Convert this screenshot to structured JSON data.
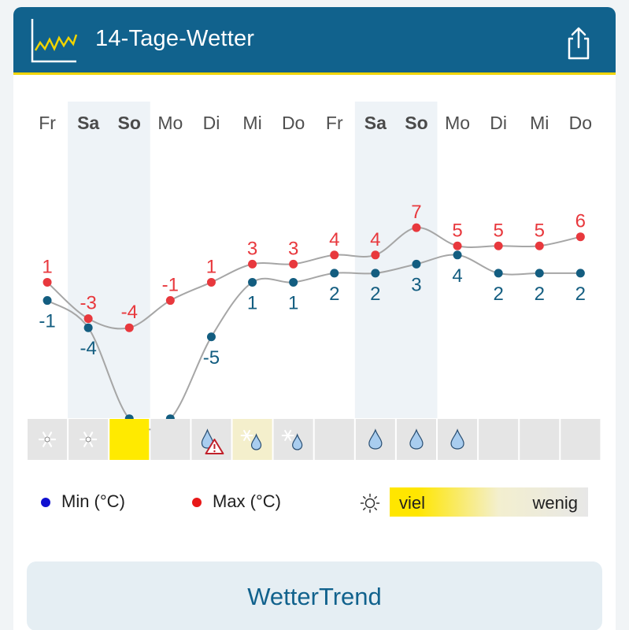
{
  "header": {
    "title": "14-Tage-Wetter",
    "chart_icon": "line-chart-icon",
    "share_icon": "share-icon",
    "accent": "#f0d400",
    "background": "#11628d"
  },
  "chart_data": {
    "type": "line",
    "categories": [
      "Fr",
      "Sa",
      "So",
      "Mo",
      "Di",
      "Mi",
      "Do",
      "Fr",
      "Sa",
      "So",
      "Mo",
      "Di",
      "Mi",
      "Do"
    ],
    "weekend_indices": [
      1,
      2,
      8,
      9
    ],
    "series": [
      {
        "name": "Max (°C)",
        "color": "#e8383d",
        "values": [
          1,
          -3,
          -4,
          -1,
          1,
          3,
          3,
          4,
          4,
          7,
          5,
          5,
          5,
          6
        ]
      },
      {
        "name": "Min (°C)",
        "color": "#135d80",
        "values": [
          -1,
          -4,
          -14,
          -14,
          -5,
          1,
          1,
          2,
          2,
          3,
          4,
          2,
          2,
          2
        ]
      }
    ],
    "legend_placement": "bottom",
    "grid": false
  },
  "sunshine_cells": [
    {
      "level": 0,
      "icon": "snow-icon"
    },
    {
      "level": 0,
      "icon": "snow-icon"
    },
    {
      "level": 1,
      "icon": ""
    },
    {
      "level": 0,
      "icon": ""
    },
    {
      "level": 0,
      "icon": "rain-warning-icon"
    },
    {
      "level": 0.3,
      "icon": "snow-rain-icon"
    },
    {
      "level": 0,
      "icon": "snow-rain-icon"
    },
    {
      "level": 0,
      "icon": ""
    },
    {
      "level": 0,
      "icon": "rain-icon"
    },
    {
      "level": 0,
      "icon": "rain-icon"
    },
    {
      "level": 0,
      "icon": "rain-icon"
    },
    {
      "level": 0,
      "icon": ""
    },
    {
      "level": 0,
      "icon": ""
    },
    {
      "level": 0,
      "icon": ""
    }
  ],
  "legend": {
    "min_label": "Min (°C)",
    "max_label": "Max (°C)",
    "min_color": "#1010d0",
    "max_color": "#e81818",
    "sun_icon": "sun-icon",
    "sun_more": "viel",
    "sun_less": "wenig"
  },
  "button": {
    "label": "WetterTrend"
  }
}
